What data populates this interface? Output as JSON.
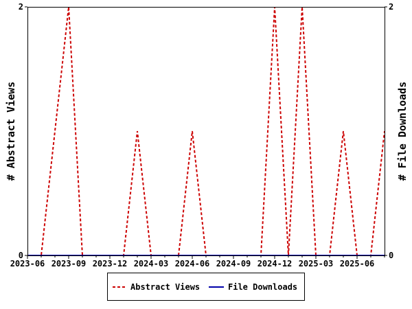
{
  "chart_data": {
    "type": "line",
    "x": [
      "2023-06",
      "2023-07",
      "2023-08",
      "2023-09",
      "2023-10",
      "2023-11",
      "2023-12",
      "2024-01",
      "2024-02",
      "2024-03",
      "2024-04",
      "2024-05",
      "2024-06",
      "2024-07",
      "2024-08",
      "2024-09",
      "2024-10",
      "2024-11",
      "2024-12",
      "2025-01",
      "2025-02",
      "2025-03",
      "2025-04",
      "2025-05",
      "2025-06",
      "2025-07",
      "2025-08"
    ],
    "x_tick_labels": [
      "2023-06",
      "2023-09",
      "2023-12",
      "2024-03",
      "2024-06",
      "2024-09",
      "2024-12",
      "2025-03",
      "2025-06"
    ],
    "series": [
      {
        "name": "Abstract Views",
        "axis": "left",
        "color": "#cc0000",
        "style": "dashed",
        "values": [
          0,
          0,
          1,
          2,
          0,
          0,
          0,
          0,
          1,
          0,
          0,
          0,
          1,
          0,
          0,
          0,
          0,
          0,
          2,
          0,
          2,
          0,
          0,
          1,
          0,
          0,
          1
        ]
      },
      {
        "name": "File Downloads",
        "axis": "right",
        "color": "#0000aa",
        "style": "solid",
        "values": [
          0,
          0,
          0,
          0,
          0,
          0,
          0,
          0,
          0,
          0,
          0,
          0,
          0,
          0,
          0,
          0,
          0,
          0,
          0,
          0,
          0,
          0,
          0,
          0,
          0,
          0,
          0
        ]
      }
    ],
    "ylabel": "# Abstract Views",
    "y2label": "# File Downloads",
    "ylim": [
      0,
      2
    ],
    "y2lim": [
      0,
      2
    ],
    "y_tick_labels": [
      "0",
      "2"
    ],
    "y2_tick_labels": [
      "0",
      "2"
    ],
    "grid": false,
    "legend_placement": "bottom"
  }
}
